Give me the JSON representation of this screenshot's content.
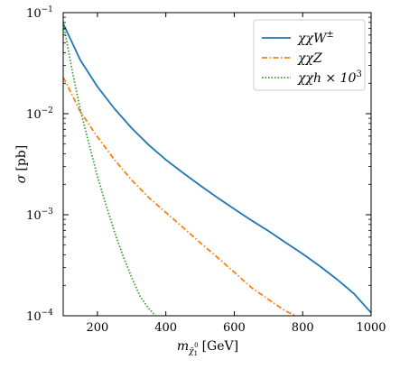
{
  "chart_data": {
    "type": "line",
    "xlabel_var": "m",
    "xlabel_sub": "χ̃",
    "xlabel_subsub": "1",
    "xlabel_supsub": "0",
    "xlabel_unit": "[GeV]",
    "ylabel_var": "σ",
    "ylabel_unit": "[pb]",
    "xlim": [
      100,
      1000
    ],
    "ylim": [
      0.0001,
      0.1
    ],
    "yscale": "log",
    "grid": false,
    "legend_position": "top-right",
    "x_ticks": [
      200,
      400,
      600,
      800,
      1000
    ],
    "x_tick_labels": [
      "200",
      "400",
      "600",
      "800",
      "1000"
    ],
    "y_ticks": [
      0.0001,
      0.001,
      0.01,
      0.1
    ],
    "y_tick_labels": [
      {
        "base": "10",
        "exp": "−4"
      },
      {
        "base": "10",
        "exp": "−3"
      },
      {
        "base": "10",
        "exp": "−2"
      },
      {
        "base": "10",
        "exp": "−1"
      }
    ],
    "series": [
      {
        "name": "χχW",
        "name_sup": "±",
        "color": "#1f77b4",
        "dash": "solid",
        "x": [
          100,
          150,
          200,
          250,
          300,
          350,
          400,
          450,
          500,
          550,
          600,
          650,
          700,
          750,
          800,
          850,
          900,
          950,
          1000
        ],
        "y": [
          0.078,
          0.034,
          0.0185,
          0.0112,
          0.0072,
          0.0049,
          0.0035,
          0.0026,
          0.00195,
          0.00148,
          0.00114,
          0.00088,
          0.00069,
          0.00053,
          0.00041,
          0.00031,
          0.00023,
          0.000165,
          0.000107
        ]
      },
      {
        "name": "χχZ",
        "name_sup": "",
        "color": "#ff7f0e",
        "dash": "dashdot",
        "x": [
          100,
          150,
          200,
          250,
          300,
          350,
          400,
          450,
          500,
          550,
          600,
          650,
          700,
          750,
          780
        ],
        "y": [
          0.023,
          0.0105,
          0.0059,
          0.0035,
          0.0022,
          0.00148,
          0.00105,
          0.00075,
          0.00053,
          0.00038,
          0.00027,
          0.00019,
          0.000145,
          0.000111,
          0.0001
        ]
      },
      {
        "name": "χχh × 10",
        "name_sup": "3",
        "color": "#2ca02c",
        "dash": "dotted",
        "x": [
          100,
          125,
          150,
          175,
          200,
          225,
          250,
          275,
          300,
          325,
          350,
          370
        ],
        "y": [
          0.08,
          0.028,
          0.011,
          0.0051,
          0.0024,
          0.00125,
          0.00068,
          0.00039,
          0.00024,
          0.000155,
          0.000118,
          0.0001
        ]
      }
    ]
  }
}
